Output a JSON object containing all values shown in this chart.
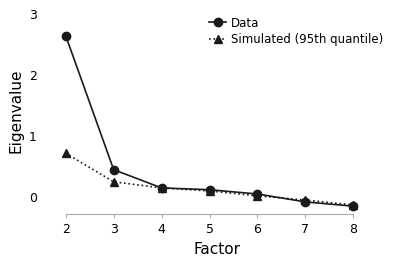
{
  "data_x": [
    2,
    3,
    4,
    5,
    6,
    7,
    8
  ],
  "data_y": [
    2.65,
    0.45,
    0.15,
    0.12,
    0.05,
    -0.08,
    -0.15
  ],
  "sim_x": [
    2,
    3,
    4,
    5,
    6,
    7,
    8
  ],
  "sim_y": [
    0.72,
    0.25,
    0.15,
    0.1,
    0.02,
    -0.05,
    -0.13
  ],
  "xlabel": "Factor",
  "ylabel": "Eigenvalue",
  "xlim": [
    1.5,
    8.8
  ],
  "ylim": [
    -0.28,
    3.1
  ],
  "yticks": [
    0,
    1,
    2,
    3
  ],
  "xticks": [
    2,
    3,
    4,
    5,
    6,
    7,
    8
  ],
  "xtick_labels": [
    "2",
    "3",
    "4",
    "5",
    "6",
    "7",
    "8"
  ],
  "data_color": "#1a1a1a",
  "sim_color": "#1a1a1a",
  "legend_data_label": "Data",
  "legend_sim_label": "Simulated (95th quantile)",
  "background_color": "#ffffff",
  "line_width": 1.2,
  "marker_size": 6,
  "spine_color": "#aaaaaa",
  "tick_label_fontsize": 9,
  "axis_label_fontsize": 11,
  "legend_fontsize": 8.5
}
